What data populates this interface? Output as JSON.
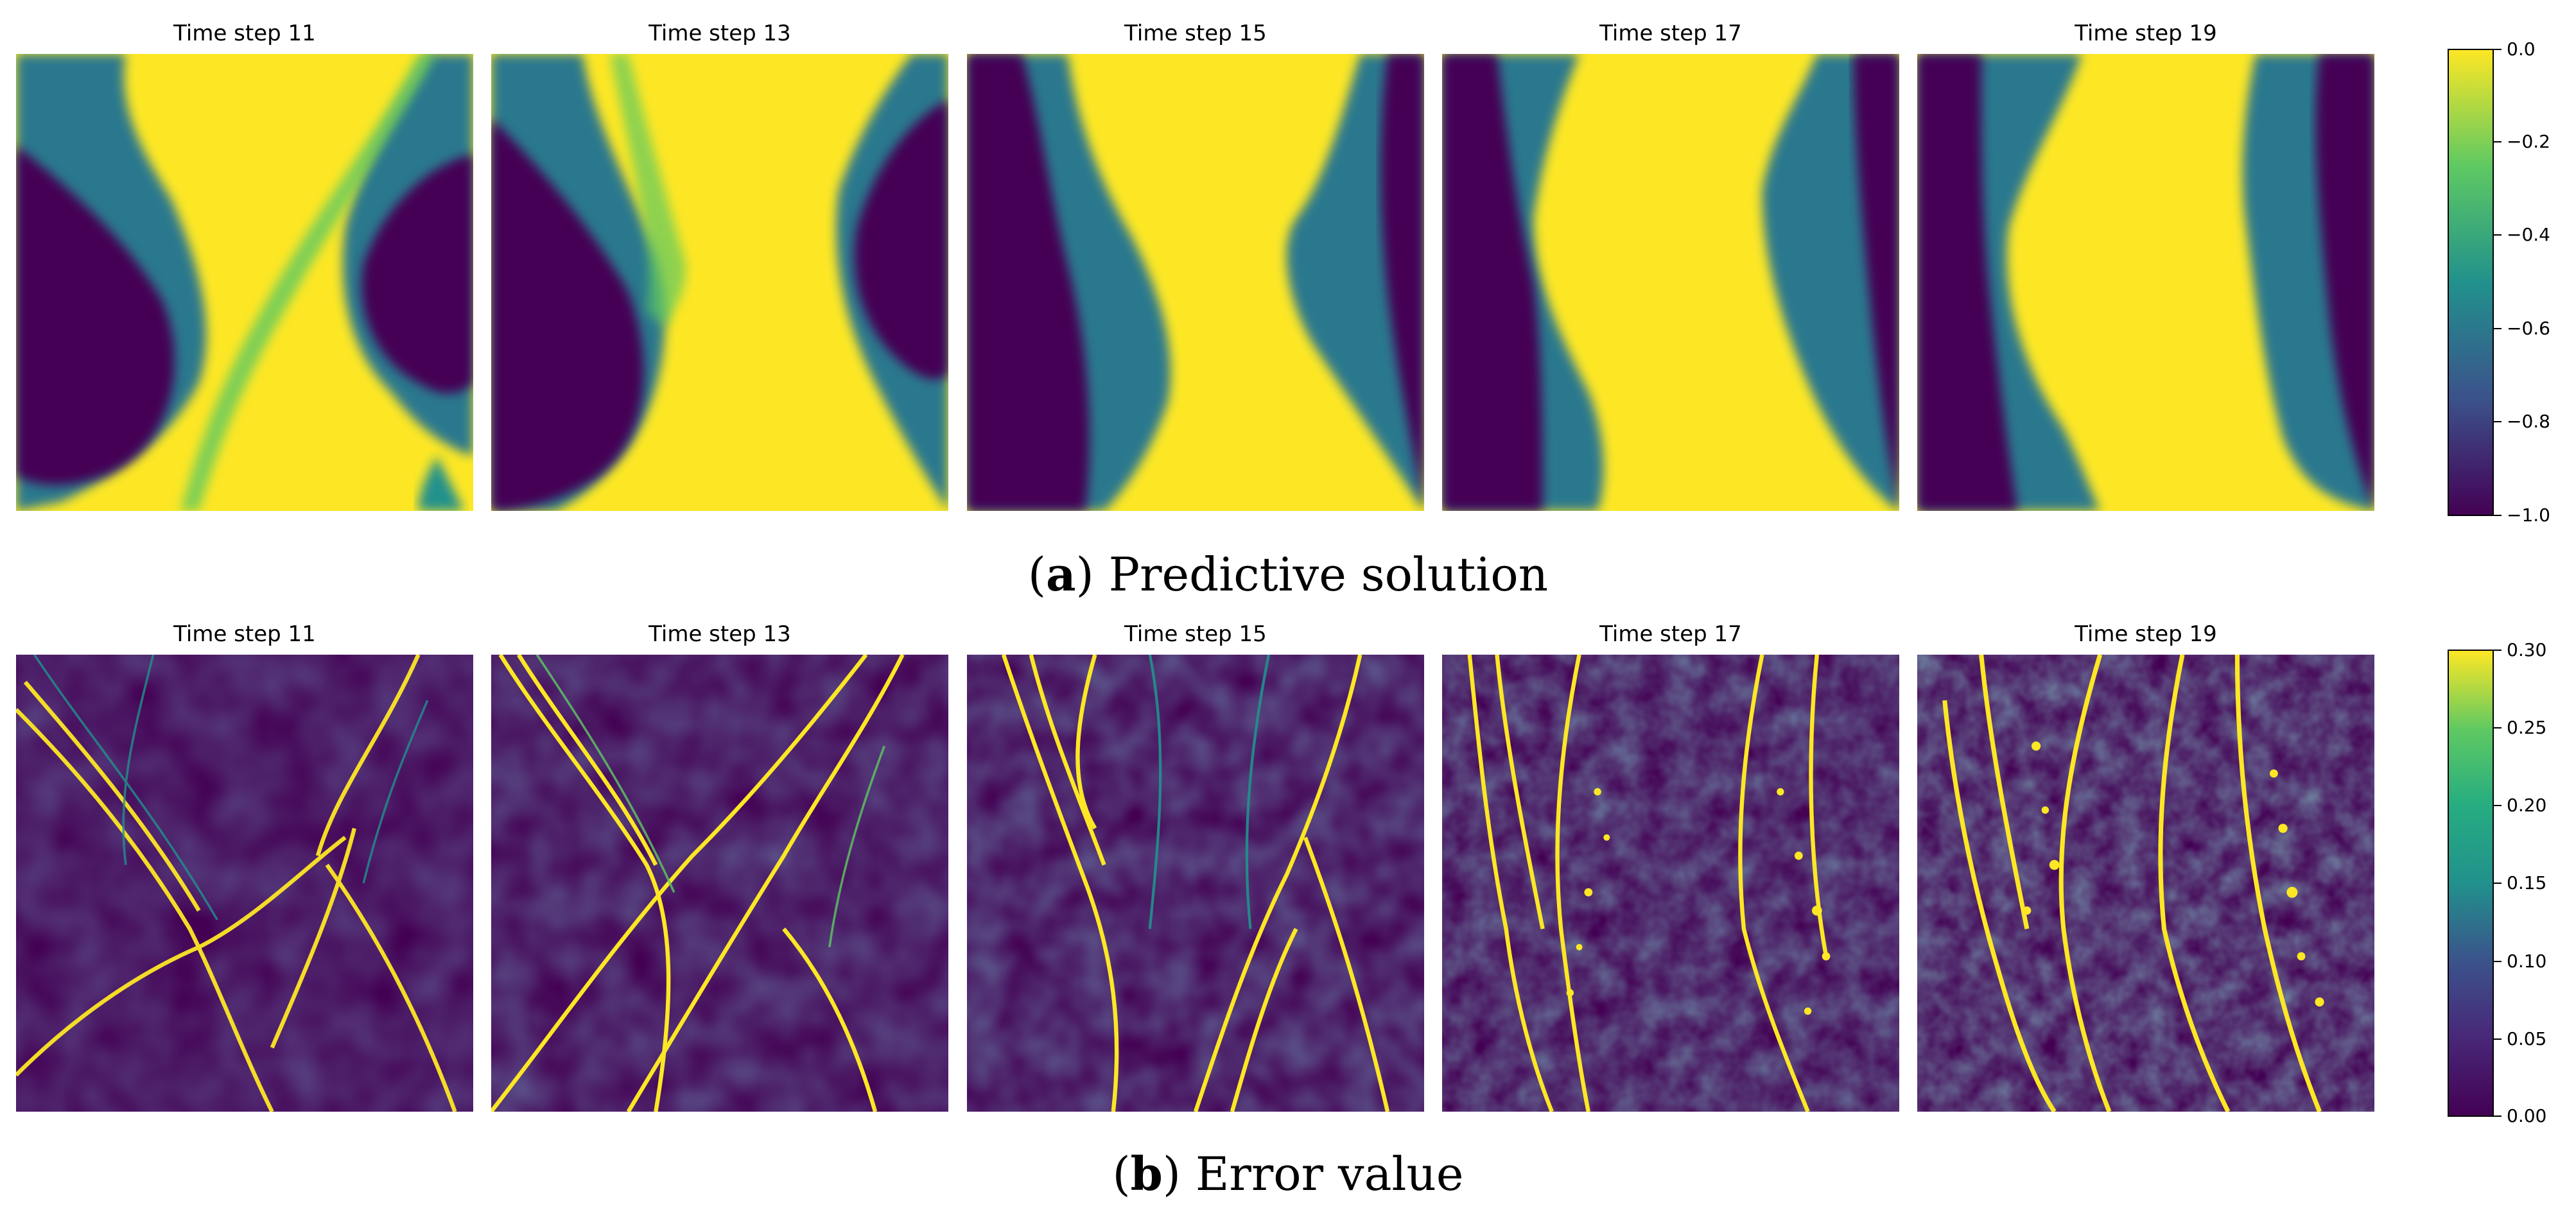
{
  "chart_data": [
    {
      "type": "heatmap",
      "subtitle": "Predictive solution",
      "caption_letter": "a",
      "panel_titles": [
        "Time step 11",
        "Time step 13",
        "Time step 15",
        "Time step 17",
        "Time step 19"
      ],
      "colorbar": {
        "colormap": "viridis",
        "range": [
          -1.0,
          0.0
        ],
        "ticks": [
          "0.0",
          "−0.2",
          "−0.4",
          "−0.6",
          "−0.8",
          "−1.0"
        ]
      }
    },
    {
      "type": "heatmap",
      "subtitle": "Error value",
      "caption_letter": "b",
      "panel_titles": [
        "Time step 11",
        "Time step 13",
        "Time step 15",
        "Time step 17",
        "Time step 19"
      ],
      "colorbar": {
        "colormap": "viridis",
        "range": [
          0.0,
          0.3
        ],
        "ticks": [
          "0.30",
          "0.25",
          "0.20",
          "0.15",
          "0.10",
          "0.05",
          "0.00"
        ]
      }
    }
  ],
  "colors": {
    "viridis_low": "#440154",
    "viridis_mid": "#21918c",
    "viridis_high": "#fde725"
  }
}
